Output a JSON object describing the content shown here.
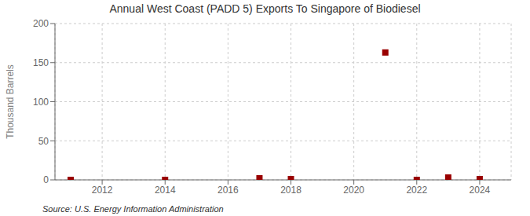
{
  "chart_data": {
    "type": "scatter",
    "title": "Annual West Coast (PADD 5) Exports To Singapore of Biodiesel",
    "ylabel": "Thousand Barrels",
    "annotations": [
      "Source: U.S. Energy Information Administration"
    ],
    "x": [
      2011,
      2014,
      2017,
      2018,
      2021,
      2022,
      2023,
      2024
    ],
    "values": [
      0,
      0,
      2,
      1,
      163,
      0,
      3,
      1
    ],
    "color": "#990000",
    "marker": "square",
    "xlim": [
      2010.5,
      2025
    ],
    "xticks": [
      2012,
      2014,
      2016,
      2018,
      2020,
      2022,
      2024
    ],
    "ylim": [
      0,
      200
    ],
    "yticks": [
      0,
      50,
      100,
      150,
      200
    ],
    "grid": true
  }
}
